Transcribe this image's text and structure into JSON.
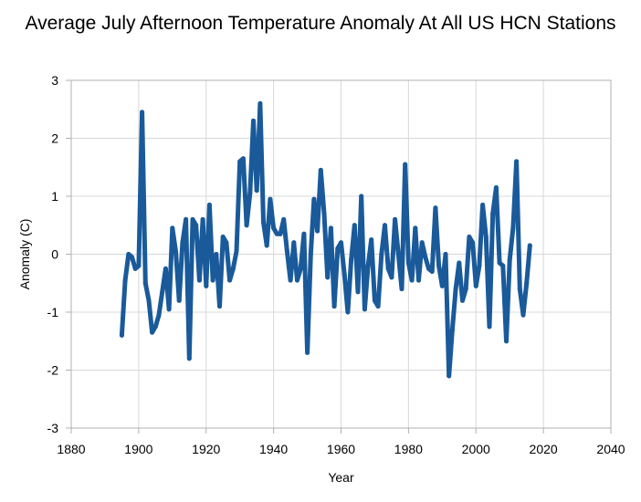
{
  "chart_data": {
    "type": "line",
    "title": "Average July Afternoon Temperature Anomaly At All US HCN Stations",
    "xlabel": "Year",
    "ylabel": "Anomaly (C)",
    "xlim": [
      1880,
      2040
    ],
    "ylim": [
      -3,
      3
    ],
    "xticks": [
      1880,
      1900,
      1920,
      1940,
      1960,
      1980,
      2000,
      2020,
      2040
    ],
    "yticks": [
      -3,
      -2,
      -1,
      0,
      1,
      2,
      3
    ],
    "grid": true,
    "legend": "none",
    "line_color": "#1a5a9a",
    "series": [
      {
        "x": [
          1895,
          1896,
          1897,
          1898,
          1899,
          1900,
          1901,
          1902,
          1903,
          1904,
          1905,
          1906,
          1907,
          1908,
          1909,
          1910,
          1911,
          1912,
          1913,
          1914,
          1915,
          1916,
          1917,
          1918,
          1919,
          1920,
          1921,
          1922,
          1923,
          1924,
          1925,
          1926,
          1927,
          1928,
          1929,
          1930,
          1931,
          1932,
          1933,
          1934,
          1935,
          1936,
          1937,
          1938,
          1939,
          1940,
          1941,
          1942,
          1943,
          1944,
          1945,
          1946,
          1947,
          1948,
          1949,
          1950,
          1951,
          1952,
          1953,
          1954,
          1955,
          1956,
          1957,
          1958,
          1959,
          1960,
          1961,
          1962,
          1963,
          1964,
          1965,
          1966,
          1967,
          1968,
          1969,
          1970,
          1971,
          1972,
          1973,
          1974,
          1975,
          1976,
          1977,
          1978,
          1979,
          1980,
          1981,
          1982,
          1983,
          1984,
          1985,
          1986,
          1987,
          1988,
          1989,
          1990,
          1991,
          1992,
          1993,
          1994,
          1995,
          1996,
          1997,
          1998,
          1999,
          2000,
          2001,
          2002,
          2003,
          2004,
          2005,
          2006,
          2007,
          2008,
          2009,
          2010,
          2011,
          2012,
          2013,
          2014,
          2015,
          2016
        ],
        "values": [
          -1.4,
          -0.45,
          0.0,
          -0.05,
          -0.25,
          -0.2,
          2.45,
          -0.5,
          -0.8,
          -1.35,
          -1.25,
          -1.05,
          -0.65,
          -0.25,
          -0.95,
          0.45,
          0.05,
          -0.8,
          0.2,
          0.6,
          -1.8,
          0.6,
          0.5,
          -0.45,
          0.6,
          -0.55,
          0.85,
          -0.45,
          0.0,
          -0.9,
          0.3,
          0.2,
          -0.45,
          -0.25,
          0.05,
          1.6,
          1.65,
          0.5,
          1.05,
          2.3,
          1.1,
          2.6,
          0.55,
          0.15,
          0.95,
          0.45,
          0.35,
          0.35,
          0.6,
          0.05,
          -0.45,
          0.2,
          -0.45,
          -0.25,
          0.35,
          -1.7,
          0.0,
          0.95,
          0.4,
          1.45,
          0.7,
          -0.4,
          0.45,
          -0.9,
          0.1,
          0.2,
          -0.35,
          -1.0,
          -0.1,
          0.5,
          -0.65,
          1.0,
          -0.95,
          -0.2,
          0.25,
          -0.8,
          -0.9,
          0.0,
          0.5,
          -0.25,
          -0.4,
          0.6,
          0.0,
          -0.6,
          1.55,
          -0.15,
          -0.45,
          0.45,
          -0.45,
          0.2,
          -0.05,
          -0.25,
          -0.3,
          0.8,
          -0.2,
          -0.55,
          0.0,
          -2.1,
          -1.3,
          -0.6,
          -0.15,
          -0.8,
          -0.6,
          0.3,
          0.2,
          -0.55,
          -0.2,
          0.85,
          0.3,
          -1.25,
          0.7,
          1.15,
          -0.15,
          -0.2,
          -1.5,
          -0.1,
          0.45,
          1.6,
          -0.6,
          -1.05,
          -0.5,
          0.15
        ]
      }
    ]
  }
}
